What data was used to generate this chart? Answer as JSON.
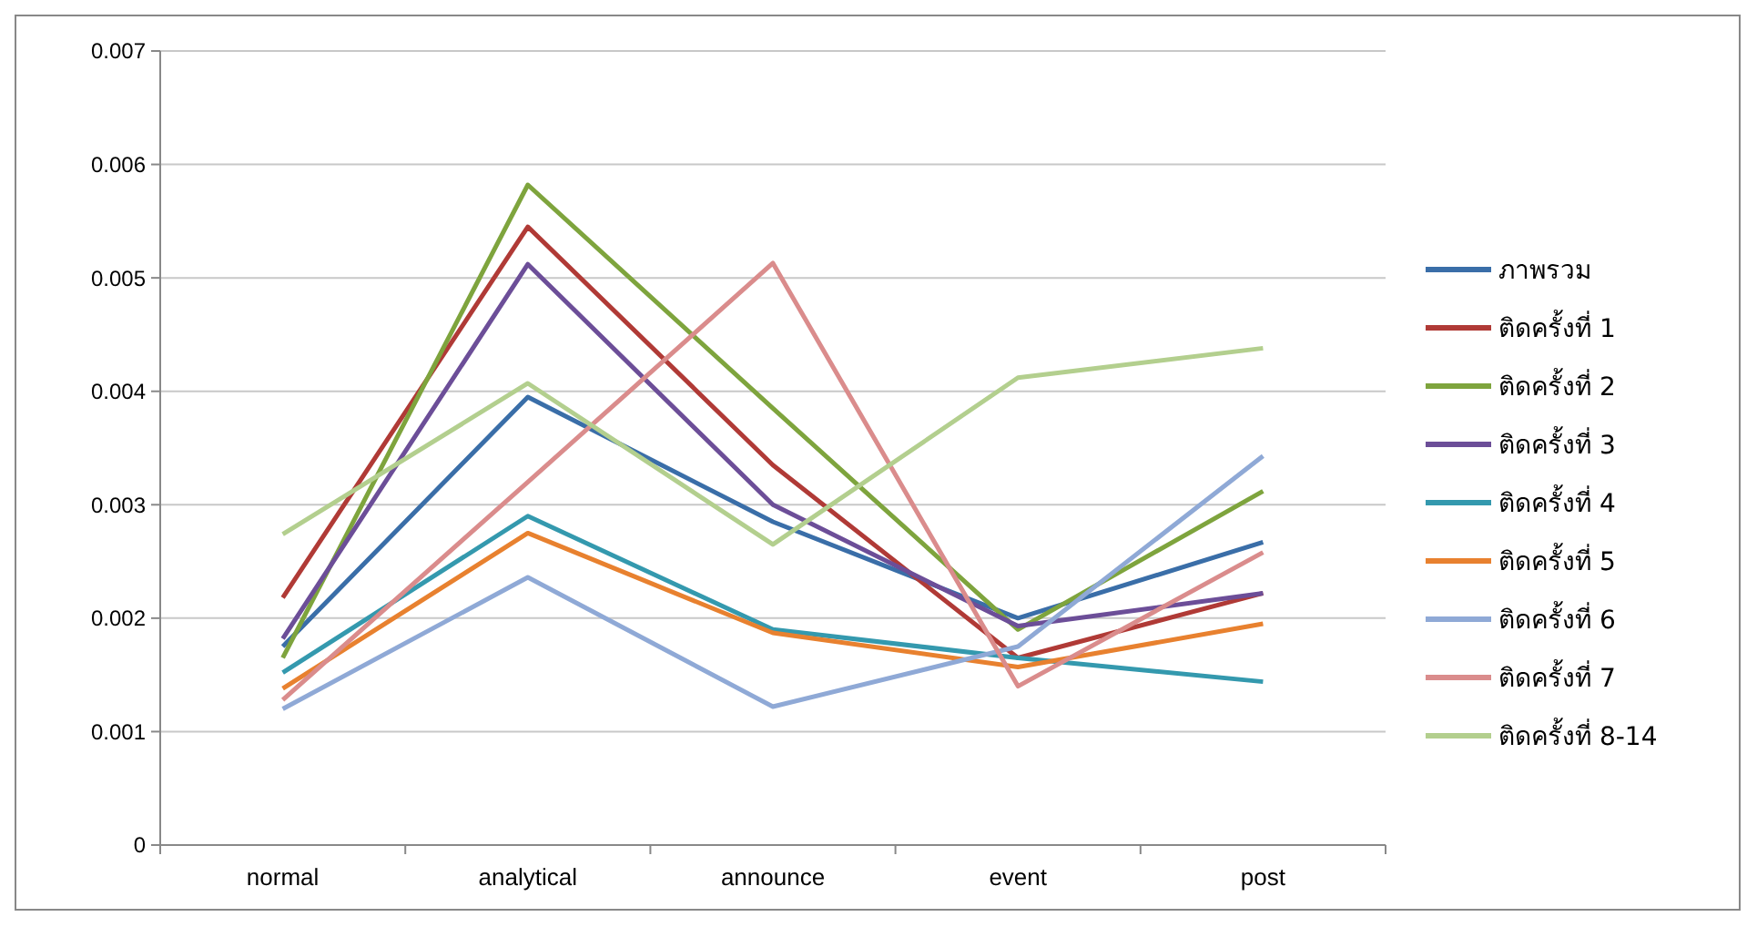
{
  "chart_data": {
    "type": "line",
    "categories": [
      "normal",
      "analytical",
      "announce",
      "event",
      "post"
    ],
    "series": [
      {
        "name": "ภาพรวม",
        "color": "#3a6ea8",
        "values": [
          0.00175,
          0.00395,
          0.00285,
          0.002,
          0.00267
        ]
      },
      {
        "name": "ติดครั้งที่ 1",
        "color": "#b03a36",
        "values": [
          0.00218,
          0.00545,
          0.00335,
          0.00165,
          0.00222
        ]
      },
      {
        "name": "ติดครั้งที่ 2",
        "color": "#7ea43d",
        "values": [
          0.00165,
          0.00582,
          0.00385,
          0.0019,
          0.00312
        ]
      },
      {
        "name": "ติดครั้งที่ 3",
        "color": "#6c4e98",
        "values": [
          0.00182,
          0.00512,
          0.003,
          0.00193,
          0.00222
        ]
      },
      {
        "name": "ติดครั้งที่ 4",
        "color": "#3499ae",
        "values": [
          0.00152,
          0.0029,
          0.0019,
          0.00165,
          0.00144
        ]
      },
      {
        "name": "ติดครั้งที่ 5",
        "color": "#e8812f",
        "values": [
          0.00138,
          0.00275,
          0.00187,
          0.00157,
          0.00195
        ]
      },
      {
        "name": "ติดครั้งที่ 6",
        "color": "#8fa9d6",
        "values": [
          0.0012,
          0.00236,
          0.00122,
          0.00175,
          0.00343
        ]
      },
      {
        "name": "ติดครั้งที่ 7",
        "color": "#da8c8c",
        "values": [
          0.00128,
          0.0032,
          0.00513,
          0.0014,
          0.00258
        ]
      },
      {
        "name": "ติดครั้งที่ 8-14",
        "color": "#b3cf8e",
        "values": [
          0.00274,
          0.00407,
          0.00265,
          0.00412,
          0.00438
        ]
      }
    ],
    "ylim": [
      0,
      0.007
    ],
    "yticks": [
      0,
      0.001,
      0.002,
      0.003,
      0.004,
      0.005,
      0.006,
      0.007
    ],
    "grid": "y",
    "legend": "right",
    "line_style": "solid",
    "marker": "none"
  }
}
